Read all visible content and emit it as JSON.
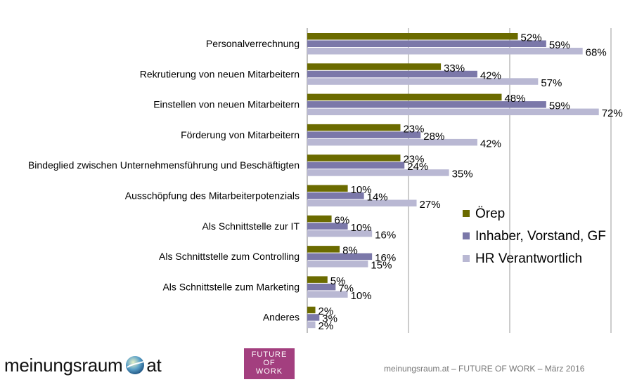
{
  "chart_data": {
    "type": "bar",
    "orientation": "horizontal",
    "categories": [
      "Personalverrechnung",
      "Rekrutierung von neuen Mitarbeitern",
      "Einstellen von neuen Mitarbeitern",
      "Förderung von Mitarbeitern",
      "Bindeglied zwischen Unternehmensführung und Beschäftigten",
      "Ausschöpfung des Mitarbeiterpotenzials",
      "Als Schnittstelle zur IT",
      "Als Schnittstelle zum Controlling",
      "Als Schnittstelle zum Marketing",
      "Anderes"
    ],
    "series": [
      {
        "name": "Örep",
        "color": "#6b6b00",
        "values": [
          52,
          33,
          48,
          23,
          23,
          10,
          6,
          8,
          5,
          2
        ]
      },
      {
        "name": "Inhaber, Vorstand, GF",
        "color": "#7b78a9",
        "values": [
          59,
          42,
          59,
          28,
          24,
          14,
          10,
          16,
          7,
          3
        ]
      },
      {
        "name": "HR Verantwortlich",
        "color": "#b9b8d3",
        "values": [
          68,
          57,
          72,
          42,
          35,
          27,
          16,
          15,
          10,
          2
        ]
      }
    ],
    "value_suffix": "%",
    "xlim": [
      0,
      75
    ],
    "gridlines": [
      0,
      25,
      50,
      75
    ],
    "grid": true,
    "legend_position": "bottom-right"
  },
  "footer": {
    "brand_left": "meinungsraum",
    "brand_right": "at",
    "fow_line1": "FUTURE",
    "fow_line2": "OF",
    "fow_line3": "WORK",
    "caption": "meinungsraum.at – FUTURE OF WORK – März 2016"
  }
}
